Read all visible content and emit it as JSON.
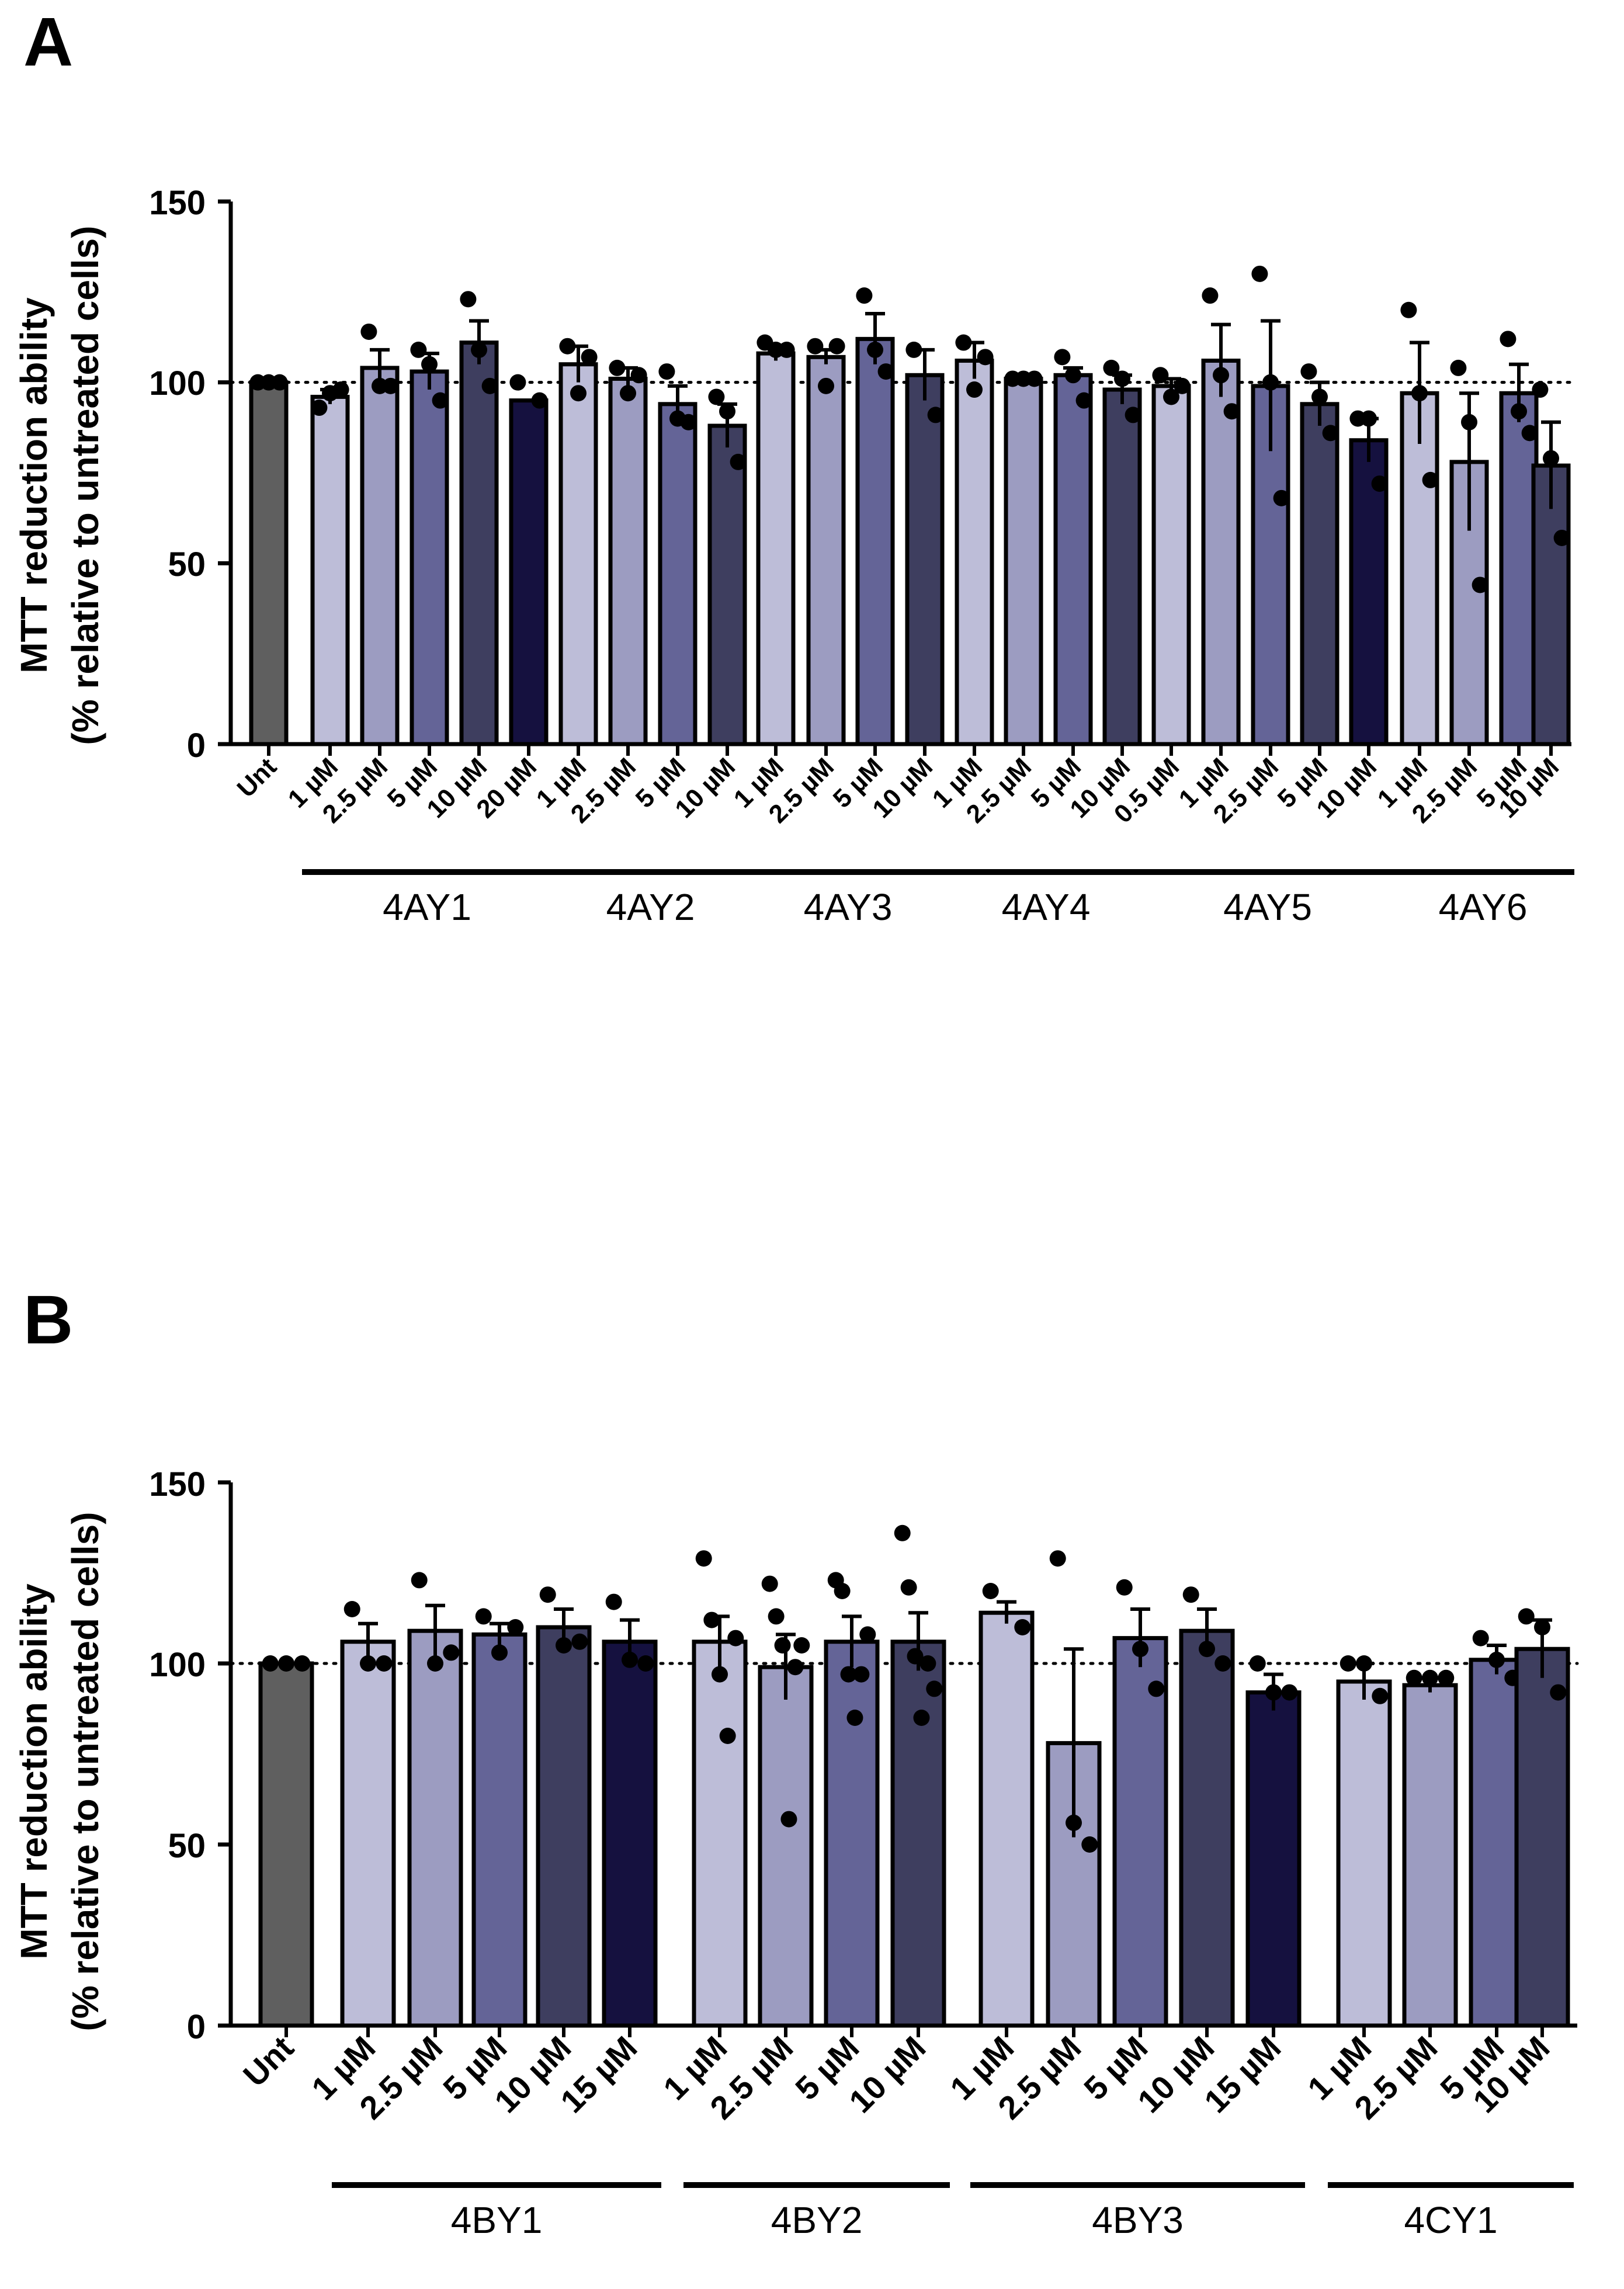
{
  "colors": {
    "unt": "#5f5f5f",
    "shade1": "#bdbdd8",
    "shade2": "#9c9cc1",
    "shade3": "#646497",
    "shade4": "#3e3e5f",
    "shade5": "#15113f",
    "axis": "#000000"
  },
  "chart_data": [
    {
      "id": "A",
      "type": "bar",
      "panel_label": "A",
      "ylabel_line1": "MTT reduction ability",
      "ylabel_line2": "(% relative to untreated cells)",
      "ylim": [
        0,
        150
      ],
      "yticks": [
        "0",
        "50",
        "100",
        "150"
      ],
      "reference_line": 100,
      "bars": [
        {
          "label": "Unt",
          "group": "",
          "value": 100,
          "error": 0,
          "points": [
            100,
            100,
            100
          ],
          "shade": "unt"
        },
        {
          "label": "1 µM",
          "group": "4AY1",
          "value": 96,
          "error": 2,
          "points": [
            93,
            97,
            98
          ],
          "shade": "shade1"
        },
        {
          "label": "2.5 µM",
          "group": "4AY1",
          "value": 104,
          "error": 5,
          "points": [
            114,
            99,
            99
          ],
          "shade": "shade2"
        },
        {
          "label": "5 µM",
          "group": "4AY1",
          "value": 103,
          "error": 5,
          "points": [
            109,
            105,
            95
          ],
          "shade": "shade3"
        },
        {
          "label": "10 µM",
          "group": "4AY1",
          "value": 111,
          "error": 6,
          "points": [
            123,
            109,
            99
          ],
          "shade": "shade4"
        },
        {
          "label": "20 µM",
          "group": "4AY1",
          "value": 95,
          "error": 0,
          "points": [
            100,
            95
          ],
          "shade": "shade5"
        },
        {
          "label": "1 µM",
          "group": "4AY2",
          "value": 105,
          "error": 5,
          "points": [
            110,
            97,
            107
          ],
          "shade": "shade1"
        },
        {
          "label": "2.5 µM",
          "group": "4AY2",
          "value": 101,
          "error": 3,
          "points": [
            104,
            97,
            102
          ],
          "shade": "shade2"
        },
        {
          "label": "5 µM",
          "group": "4AY2",
          "value": 94,
          "error": 5,
          "points": [
            103,
            90,
            89
          ],
          "shade": "shade3"
        },
        {
          "label": "10 µM",
          "group": "4AY2",
          "value": 88,
          "error": 6,
          "points": [
            96,
            92,
            78
          ],
          "shade": "shade4"
        },
        {
          "label": "1 µM",
          "group": "4AY3",
          "value": 108,
          "error": 2,
          "points": [
            111,
            109,
            109
          ],
          "shade": "shade1"
        },
        {
          "label": "2.5 µM",
          "group": "4AY3",
          "value": 107,
          "error": 2,
          "points": [
            110,
            99,
            110
          ],
          "shade": "shade2"
        },
        {
          "label": "5 µM",
          "group": "4AY3",
          "value": 112,
          "error": 7,
          "points": [
            124,
            109,
            103
          ],
          "shade": "shade3"
        },
        {
          "label": "10 µM",
          "group": "4AY3",
          "value": 102,
          "error": 7,
          "points": [
            109,
            91
          ],
          "shade": "shade4"
        },
        {
          "label": "1 µM",
          "group": "4AY4",
          "value": 106,
          "error": 5,
          "points": [
            111,
            98,
            107
          ],
          "shade": "shade1"
        },
        {
          "label": "2.5 µM",
          "group": "4AY4",
          "value": 101,
          "error": 1,
          "points": [
            101,
            101,
            101
          ],
          "shade": "shade2"
        },
        {
          "label": "5 µM",
          "group": "4AY4",
          "value": 102,
          "error": 2,
          "points": [
            107,
            102,
            95
          ],
          "shade": "shade3"
        },
        {
          "label": "10 µM",
          "group": "4AY4",
          "value": 98,
          "error": 4,
          "points": [
            104,
            101,
            91
          ],
          "shade": "shade4"
        },
        {
          "label": "0.5 µM",
          "group": "4AY5",
          "value": 99,
          "error": 2,
          "points": [
            102,
            96,
            99
          ],
          "shade": "shade1"
        },
        {
          "label": "1 µM",
          "group": "4AY5",
          "value": 106,
          "error": 10,
          "points": [
            124,
            102,
            92
          ],
          "shade": "shade2"
        },
        {
          "label": "2.5 µM",
          "group": "4AY5",
          "value": 99,
          "error": 18,
          "points": [
            130,
            100,
            68
          ],
          "shade": "shade3"
        },
        {
          "label": "5 µM",
          "group": "4AY5",
          "value": 94,
          "error": 6,
          "points": [
            103,
            96,
            86
          ],
          "shade": "shade4"
        },
        {
          "label": "10 µM",
          "group": "4AY5",
          "value": 84,
          "error": 6,
          "points": [
            90,
            90,
            72
          ],
          "shade": "shade5"
        },
        {
          "label": "1 µM",
          "group": "4AY6",
          "value": 97,
          "error": 14,
          "points": [
            120,
            97,
            73
          ],
          "shade": "shade1"
        },
        {
          "label": "2.5 µM",
          "group": "4AY6",
          "value": 78,
          "error": 19,
          "points": [
            104,
            89,
            44
          ],
          "shade": "shade2"
        },
        {
          "label": "5 µM",
          "group": "4AY6",
          "value": 97,
          "error": 8,
          "points": [
            112,
            92,
            86
          ],
          "shade": "shade3"
        },
        {
          "label": "10 µM",
          "group": "4AY6",
          "value": 77,
          "error": 12,
          "points": [
            98,
            79,
            57
          ],
          "shade": "shade4"
        }
      ],
      "groups": [
        {
          "label": "4AY1",
          "from": 1,
          "to": 5
        },
        {
          "label": "4AY2",
          "from": 6,
          "to": 9
        },
        {
          "label": "4AY3",
          "from": 10,
          "to": 13
        },
        {
          "label": "4AY4",
          "from": 14,
          "to": 17
        },
        {
          "label": "4AY5",
          "from": 18,
          "to": 22
        },
        {
          "label": "4AY6",
          "from": 23,
          "to": 26
        }
      ]
    },
    {
      "id": "B",
      "type": "bar",
      "panel_label": "B",
      "ylabel_line1": "MTT reduction ability",
      "ylabel_line2": "(% relative to untreated cells)",
      "ylim": [
        0,
        150
      ],
      "yticks": [
        "0",
        "50",
        "100",
        "150"
      ],
      "reference_line": 100,
      "bars": [
        {
          "label": "Unt",
          "group": "",
          "value": 100,
          "error": 0,
          "points": [
            100,
            100,
            100
          ],
          "shade": "unt"
        },
        {
          "label": "1 µM",
          "group": "4BY1",
          "value": 106,
          "error": 5,
          "points": [
            115,
            100,
            100
          ],
          "shade": "shade1"
        },
        {
          "label": "2.5 µM",
          "group": "4BY1",
          "value": 109,
          "error": 7,
          "points": [
            123,
            100,
            103
          ],
          "shade": "shade2"
        },
        {
          "label": "5 µM",
          "group": "4BY1",
          "value": 108,
          "error": 3,
          "points": [
            113,
            103,
            110
          ],
          "shade": "shade3"
        },
        {
          "label": "10 µM",
          "group": "4BY1",
          "value": 110,
          "error": 5,
          "points": [
            119,
            105,
            106
          ],
          "shade": "shade4"
        },
        {
          "label": "15 µM",
          "group": "4BY1",
          "value": 106,
          "error": 6,
          "points": [
            117,
            101,
            100
          ],
          "shade": "shade5"
        },
        {
          "label": "1 µM",
          "group": "4BY2",
          "value": 106,
          "error": 7,
          "points": [
            129,
            112,
            97,
            80,
            107
          ],
          "shade": "shade1"
        },
        {
          "label": "2.5 µM",
          "group": "4BY2",
          "value": 99,
          "error": 9,
          "points": [
            122,
            113,
            105,
            57,
            99,
            105
          ],
          "shade": "shade2"
        },
        {
          "label": "5 µM",
          "group": "4BY2",
          "value": 106,
          "error": 7,
          "points": [
            123,
            120,
            97,
            85,
            97,
            108
          ],
          "shade": "shade3"
        },
        {
          "label": "10 µM",
          "group": "4BY2",
          "value": 106,
          "error": 8,
          "points": [
            136,
            121,
            102,
            85,
            100,
            93
          ],
          "shade": "shade4"
        },
        {
          "label": "1 µM",
          "group": "4BY3",
          "value": 114,
          "error": 3,
          "points": [
            120,
            110
          ],
          "shade": "shade1"
        },
        {
          "label": "2.5 µM",
          "group": "4BY3",
          "value": 78,
          "error": 26,
          "points": [
            129,
            56,
            50
          ],
          "shade": "shade2"
        },
        {
          "label": "5 µM",
          "group": "4BY3",
          "value": 107,
          "error": 8,
          "points": [
            121,
            104,
            93
          ],
          "shade": "shade3"
        },
        {
          "label": "10 µM",
          "group": "4BY3",
          "value": 109,
          "error": 6,
          "points": [
            119,
            104,
            100
          ],
          "shade": "shade4"
        },
        {
          "label": "15 µM",
          "group": "4BY3",
          "value": 92,
          "error": 5,
          "points": [
            100,
            92,
            92
          ],
          "shade": "shade5"
        },
        {
          "label": "1 µM",
          "group": "4CY1",
          "value": 95,
          "error": 5,
          "points": [
            100,
            100,
            91
          ],
          "shade": "shade1"
        },
        {
          "label": "2.5 µM",
          "group": "4CY1",
          "value": 94,
          "error": 2,
          "points": [
            96,
            96,
            96
          ],
          "shade": "shade2"
        },
        {
          "label": "5 µM",
          "group": "4CY1",
          "value": 101,
          "error": 4,
          "points": [
            107,
            101,
            96
          ],
          "shade": "shade3"
        },
        {
          "label": "10 µM",
          "group": "4CY1",
          "value": 104,
          "error": 8,
          "points": [
            113,
            110,
            92
          ],
          "shade": "shade4"
        }
      ],
      "groups": [
        {
          "label": "4BY1",
          "from": 1,
          "to": 5
        },
        {
          "label": "4BY2",
          "from": 6,
          "to": 9
        },
        {
          "label": "4BY3",
          "from": 10,
          "to": 14
        },
        {
          "label": "4CY1",
          "from": 15,
          "to": 18
        }
      ]
    }
  ]
}
